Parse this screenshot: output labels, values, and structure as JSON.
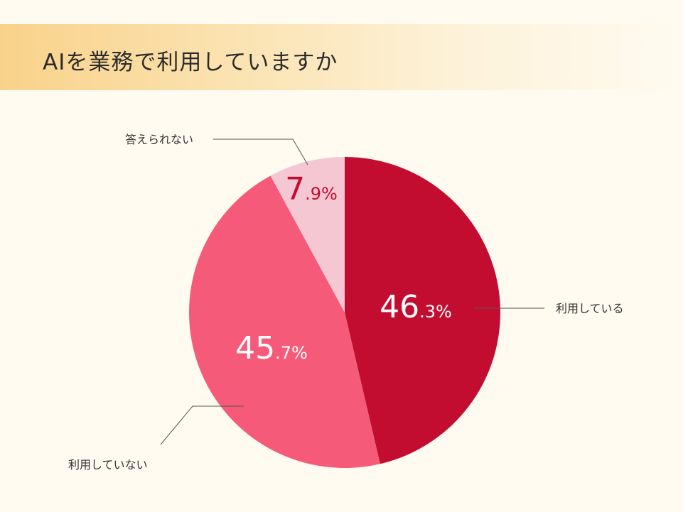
{
  "title": "AIを業務で利用していますか",
  "chart_data": {
    "type": "pie",
    "title": "AIを業務で利用していますか",
    "slices": [
      {
        "label": "利用している",
        "value": 46.3,
        "int": "46",
        "dec": ".3%",
        "color": "#c20d30",
        "text_color": "#ffffff"
      },
      {
        "label": "利用していない",
        "value": 45.7,
        "int": "45",
        "dec": ".7%",
        "color": "#f55b78",
        "text_color": "#ffffff"
      },
      {
        "label": "答えられない",
        "value": 7.9,
        "int": "7",
        "dec": ".9%",
        "color": "#f4c7d2",
        "text_color": "#c20d30"
      }
    ],
    "start": "12 o'clock",
    "direction": "clockwise"
  }
}
